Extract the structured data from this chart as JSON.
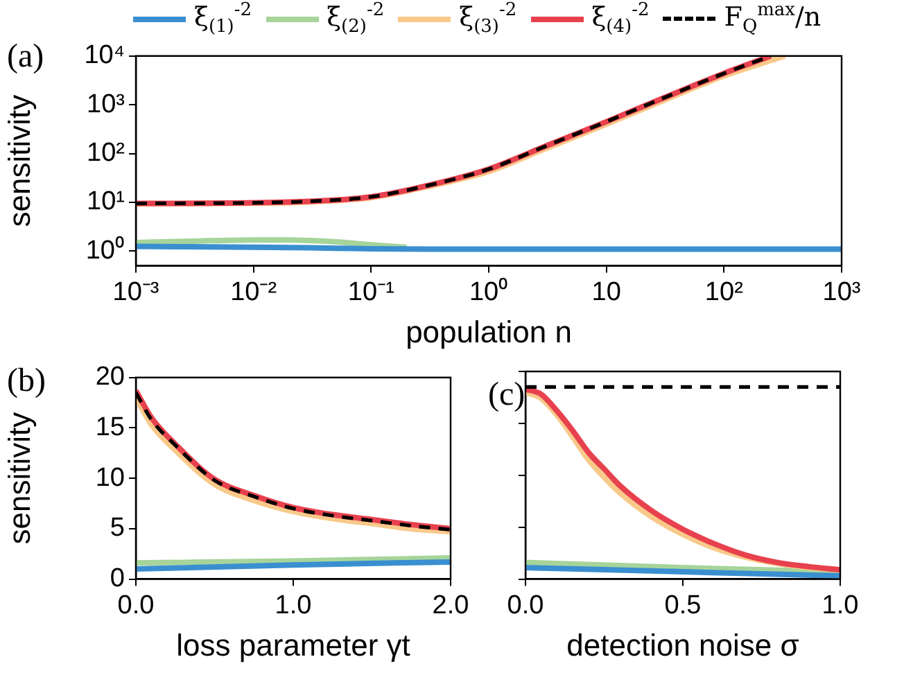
{
  "chart_data": [
    {
      "type": "line",
      "title": "(a)",
      "xlabel": "population n",
      "ylabel": "sensitivity",
      "log": "xy",
      "legend": "top",
      "xlim": [
        0.001,
        1000
      ],
      "xticks": [
        {
          "value": 0.001,
          "label": "10⁻³"
        },
        {
          "value": 0.01,
          "label": "10⁻²"
        },
        {
          "value": 0.1,
          "label": "10⁻¹"
        },
        {
          "value": 1,
          "label": "10⁰"
        },
        10,
        {
          "value": 100,
          "label": "10²"
        },
        {
          "value": 1000,
          "label": "10³"
        }
      ],
      "ylim": [
        0.5,
        10000
      ],
      "yticks": [
        {
          "value": 1,
          "label": "10⁰"
        },
        {
          "value": 10,
          "label": "10¹"
        },
        {
          "value": 100,
          "label": "10²"
        },
        {
          "value": 1000,
          "label": "10³"
        },
        {
          "value": 10000,
          "label": "10⁴"
        }
      ],
      "series": [
        {
          "name": "ξ$_{(1)}$$^{-2}$",
          "color": "#3a8fd0",
          "x": [
            0.001,
            0.01,
            0.03,
            0.1,
            0.3,
            1,
            10,
            100,
            1000
          ],
          "values": [
            1.25,
            1.2,
            1.17,
            1.12,
            1.1,
            1.1,
            1.1,
            1.1,
            1.1
          ]
        },
        {
          "name": "ξ$_{(2)}$$^{-2}$",
          "color": "#a6d49a",
          "x": [
            0.001,
            0.003,
            0.01,
            0.02,
            0.05,
            0.1,
            0.2
          ],
          "values": [
            1.5,
            1.6,
            1.7,
            1.7,
            1.55,
            1.35,
            1.2
          ]
        },
        {
          "name": "ξ$_{(3)}$$^{-2}$",
          "color": "#f9c98a",
          "x": [
            0.001,
            0.01,
            0.03,
            0.1,
            0.3,
            1,
            3,
            10,
            30,
            100,
            330
          ],
          "values": [
            9.3,
            9.6,
            10.2,
            12.5,
            21,
            43,
            125,
            400,
            1200,
            3900,
            10000
          ]
        },
        {
          "name": "ξ$_{(4)}$$^{-2}$",
          "color": "#e8414e",
          "x": [
            0.001,
            0.01,
            0.03,
            0.1,
            0.3,
            1,
            3,
            10,
            30,
            100,
            250
          ],
          "values": [
            9.5,
            9.8,
            10.5,
            13,
            22,
            48,
            140,
            450,
            1350,
            4400,
            10000
          ]
        },
        {
          "name": "F$_{Q}$$^{max}$/n",
          "color": "#000000",
          "line_style": "dashed",
          "x": [
            0.001,
            0.01,
            0.03,
            0.1,
            0.3,
            1,
            3,
            10,
            30,
            100,
            250
          ],
          "values": [
            9.5,
            9.8,
            10.5,
            13,
            22,
            48,
            140,
            450,
            1350,
            4400,
            10000
          ]
        }
      ]
    },
    {
      "type": "line",
      "title": "(b)",
      "xlabel": "loss parameter γt",
      "ylabel": "sensitivity",
      "xlim": [
        0,
        2
      ],
      "xticks": [
        {
          "value": 0,
          "label": "0.0"
        },
        {
          "value": 1,
          "label": "1.0"
        },
        {
          "value": 2,
          "label": "2.0"
        }
      ],
      "ylim": [
        0,
        20
      ],
      "yticks": [
        0,
        5,
        10,
        15,
        20
      ],
      "series": [
        {
          "color": "#3a8fd0",
          "x": [
            0,
            1,
            2
          ],
          "values": [
            1.0,
            1.4,
            1.7
          ]
        },
        {
          "color": "#a6d49a",
          "x": [
            0,
            1,
            2
          ],
          "values": [
            1.6,
            1.8,
            2.1
          ]
        },
        {
          "color": "#f9c98a",
          "x": [
            0,
            0.1,
            0.25,
            0.5,
            0.75,
            1,
            1.25,
            1.5,
            1.75,
            2
          ],
          "values": [
            18.0,
            15.3,
            12.8,
            9.4,
            7.8,
            6.7,
            6.0,
            5.5,
            5.0,
            4.7
          ]
        },
        {
          "color": "#e8414e",
          "x": [
            0,
            0.1,
            0.25,
            0.5,
            0.75,
            1,
            1.25,
            1.5,
            1.75,
            2
          ],
          "values": [
            18.7,
            16.0,
            13.4,
            9.9,
            8.3,
            7.1,
            6.4,
            5.9,
            5.4,
            5.0
          ]
        },
        {
          "color": "#000000",
          "line_style": "dashed",
          "x": [
            0,
            0.1,
            0.25,
            0.5,
            0.75,
            1,
            1.25,
            1.5,
            1.75,
            2
          ],
          "values": [
            18.5,
            15.8,
            13.3,
            9.8,
            8.2,
            7.0,
            6.3,
            5.8,
            5.3,
            4.9
          ]
        }
      ]
    },
    {
      "type": "line",
      "title": "(c)",
      "xlabel": "detection noise σ",
      "tick_labels": "x",
      "xlim": [
        0,
        1
      ],
      "xticks": [
        {
          "value": 0,
          "label": "0.0"
        },
        {
          "value": 0.5,
          "label": "0.5"
        },
        {
          "value": 1,
          "label": "1.0"
        }
      ],
      "ylim": [
        0,
        20
      ],
      "yticks": [
        0,
        5,
        10,
        15,
        20
      ],
      "series": [
        {
          "color": "#3a8fd0",
          "x": [
            0,
            0.5,
            1
          ],
          "values": [
            1.1,
            0.7,
            0.3
          ]
        },
        {
          "color": "#a6d49a",
          "x": [
            0,
            0.5,
            1
          ],
          "values": [
            1.6,
            1.1,
            0.7
          ]
        },
        {
          "color": "#f9c98a",
          "x": [
            0,
            0.05,
            0.1,
            0.15,
            0.2,
            0.25,
            0.3,
            0.4,
            0.5,
            0.6,
            0.7,
            0.8,
            0.9,
            1
          ],
          "values": [
            18.0,
            17.4,
            15.8,
            13.7,
            11.5,
            9.8,
            8.3,
            6.0,
            4.3,
            3.0,
            2.1,
            1.5,
            1.1,
            0.9
          ]
        },
        {
          "color": "#e8414e",
          "x": [
            0,
            0.05,
            0.1,
            0.15,
            0.2,
            0.25,
            0.3,
            0.4,
            0.5,
            0.6,
            0.7,
            0.8,
            0.9,
            1
          ],
          "values": [
            18.3,
            17.8,
            16.2,
            14.3,
            12.2,
            10.6,
            9.0,
            6.6,
            4.8,
            3.4,
            2.3,
            1.6,
            1.2,
            0.9
          ]
        },
        {
          "color": "#000000",
          "line_style": "dashed",
          "x": [
            0,
            1
          ],
          "values": [
            18.5,
            18.5
          ]
        }
      ]
    }
  ]
}
